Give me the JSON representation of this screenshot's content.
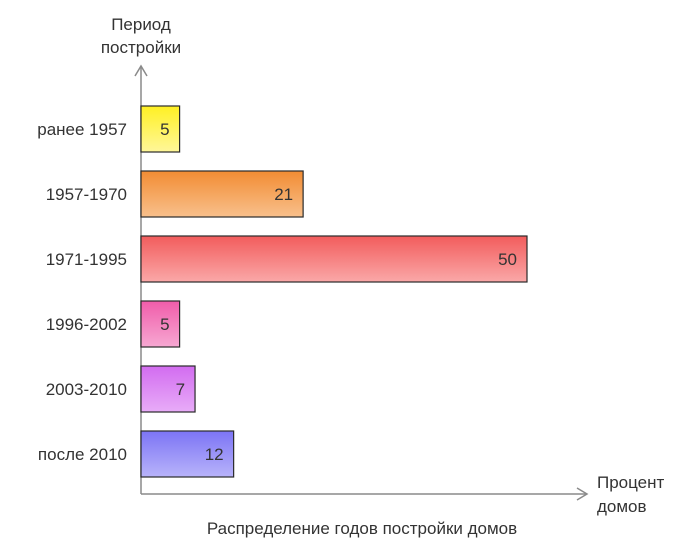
{
  "chart_data": {
    "type": "bar",
    "orientation": "horizontal",
    "categories": [
      "ранее 1957",
      "1957-1970",
      "1971-1995",
      "1996-2002",
      "2003-2010",
      "после 2010"
    ],
    "values": [
      5,
      21,
      50,
      5,
      7,
      12
    ],
    "value_labels": [
      "5",
      "21",
      "50",
      "5",
      "7",
      "12"
    ],
    "colors": [
      "#FFF023",
      "#F28C33",
      "#F25C5C",
      "#F05CAA",
      "#D26CF0",
      "#7C74F5"
    ],
    "colors_light": [
      "#FFF79A",
      "#F8C08C",
      "#FAA8A8",
      "#F7A8D2",
      "#E8ACF8",
      "#B8B3FA"
    ],
    "ylabel_lines": [
      "Период",
      "постройки"
    ],
    "xlabel_lines": [
      "Процент",
      "домов"
    ],
    "caption": "Распределение годов постройки домов",
    "xlim": [
      0,
      58
    ],
    "grid": false
  }
}
